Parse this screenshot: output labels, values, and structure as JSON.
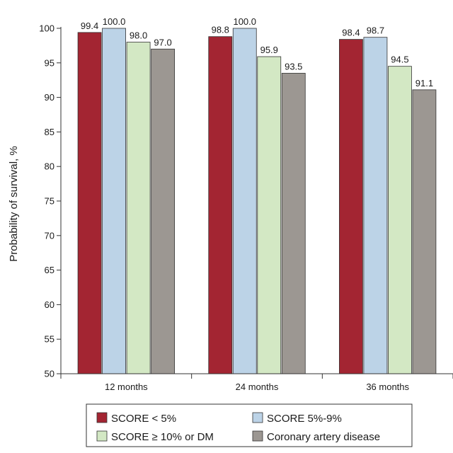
{
  "chart_data": {
    "type": "bar",
    "ylabel": "Probability of survival, %",
    "xlabel": "",
    "ylim": [
      50,
      100
    ],
    "yticks": [
      50,
      55,
      60,
      65,
      70,
      75,
      80,
      85,
      90,
      95,
      100
    ],
    "categories": [
      "12 months",
      "24 months",
      "36 months"
    ],
    "series": [
      {
        "name": "SCORE < 5%",
        "color": "#a32532",
        "values": [
          99.4,
          98.8,
          98.4
        ],
        "labels": [
          "99.4",
          "98.8",
          "98.4"
        ]
      },
      {
        "name": "SCORE 5%-9%",
        "color": "#bcd3e7",
        "values": [
          100.0,
          100.0,
          98.7
        ],
        "labels": [
          "100.0",
          "100.0",
          "98.7"
        ]
      },
      {
        "name": "SCORE ≥ 10% or DM",
        "color": "#d3e8c4",
        "values": [
          98.0,
          95.9,
          94.5
        ],
        "labels": [
          "98.0",
          "95.9",
          "94.5"
        ]
      },
      {
        "name": "Coronary artery disease",
        "color": "#9c9792",
        "values": [
          97.0,
          93.5,
          91.1
        ],
        "labels": [
          "97.0",
          "93.5",
          "91.1"
        ]
      }
    ],
    "legend": {
      "position": "bottom",
      "columns": 2
    },
    "grid": false
  }
}
